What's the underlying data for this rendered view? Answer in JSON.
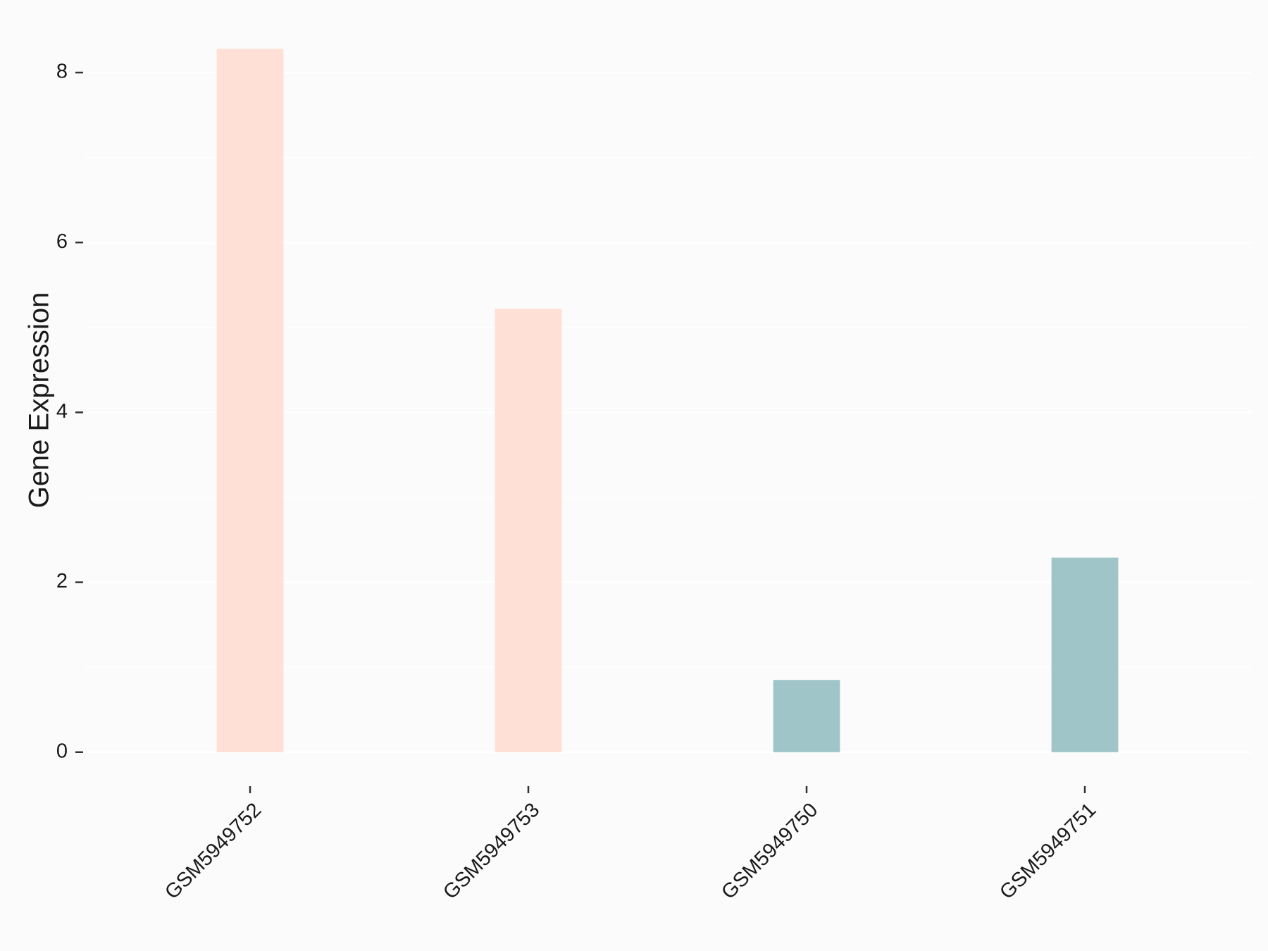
{
  "chart_data": {
    "type": "bar",
    "y_label": "Gene Expression",
    "categories": [
      "GSM5949752",
      "GSM5949753",
      "GSM5949750",
      "GSM5949751"
    ],
    "values": [
      8.28,
      5.22,
      0.85,
      2.29
    ],
    "colors": [
      "#fee0d6",
      "#fee0d6",
      "#9fc5c8",
      "#9fc5c8"
    ],
    "ylim": [
      -0.4,
      8.68
    ],
    "yticks": [
      0,
      2,
      4,
      6,
      8
    ],
    "minor_grid": [
      1,
      3,
      5,
      7
    ],
    "grid": true
  }
}
